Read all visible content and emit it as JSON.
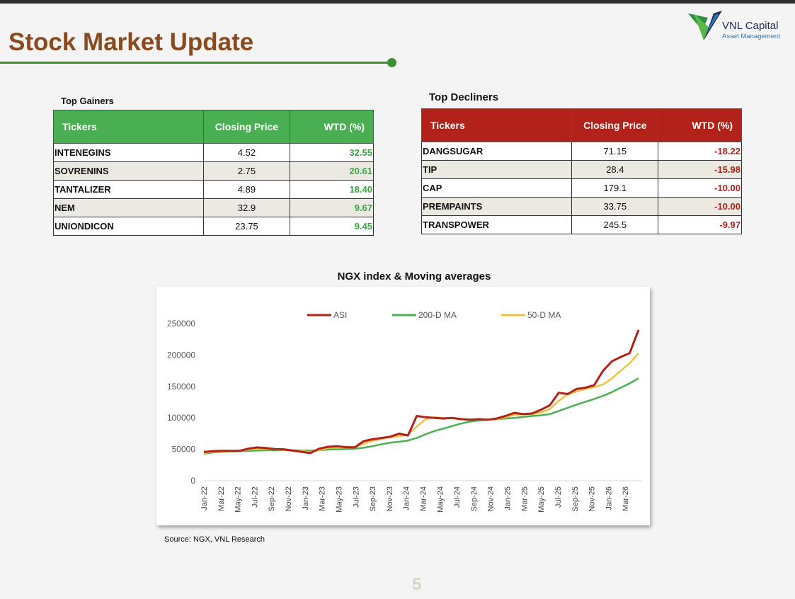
{
  "header": {
    "title": "Stock Market Update"
  },
  "logo": {
    "name": "VNL Capital",
    "tagline": "Asset Management"
  },
  "gainers": {
    "caption": "Top Gainers",
    "columns": [
      "Tickers",
      "Closing Price",
      "WTD (%)"
    ],
    "rows": [
      {
        "ticker": "INTENEGINS",
        "price": "4.52",
        "wtd": "32.55"
      },
      {
        "ticker": "SOVRENINS",
        "price": "2.75",
        "wtd": "20.61"
      },
      {
        "ticker": "TANTALIZER",
        "price": "4.89",
        "wtd": "18.40"
      },
      {
        "ticker": "NEM",
        "price": "32.9",
        "wtd": "9.67"
      },
      {
        "ticker": "UNIONDICON",
        "price": "23.75",
        "wtd": "9.45"
      }
    ],
    "header_color": "#4aae52"
  },
  "decliners": {
    "caption": "Top Decliners",
    "columns": [
      "Tickers",
      "Closing Price",
      "WTD (%)"
    ],
    "rows": [
      {
        "ticker": "DANGSUGAR",
        "price": "71.15",
        "wtd": "-18.22"
      },
      {
        "ticker": "TIP",
        "price": "28.4",
        "wtd": "-15.98"
      },
      {
        "ticker": "CAP",
        "price": "179.1",
        "wtd": "-10.00"
      },
      {
        "ticker": "PREMPAINTS",
        "price": "33.75",
        "wtd": "-10.00"
      },
      {
        "ticker": "TRANSPOWER",
        "price": "245.5",
        "wtd": "-9.97"
      }
    ],
    "header_color": "#b3211b"
  },
  "chart_data": {
    "type": "line",
    "title": "NGX index & Moving averages",
    "ylim": [
      0,
      250000
    ],
    "yticks": [
      0,
      50000,
      100000,
      150000,
      200000,
      250000
    ],
    "x_tick_labels": [
      "Jan-22",
      "Mar-22",
      "May-22",
      "Jul-22",
      "Sep-22",
      "Nov-22",
      "Jan-23",
      "Mar-23",
      "May-23",
      "Jul-23",
      "Sep-23",
      "Nov-23",
      "Jan-24",
      "Mar-24",
      "May-24",
      "Jul-24",
      "Sep-24",
      "Nov-24",
      "Jan-25",
      "Mar-25",
      "May-25",
      "Jul-25",
      "Sep-25",
      "Nov-25",
      "Jan-26",
      "Mar-26"
    ],
    "legend_position": "top",
    "series": [
      {
        "name": "ASI",
        "color": "#b3211b",
        "values": [
          46000,
          47000,
          47500,
          47500,
          47500,
          51000,
          53000,
          52000,
          50500,
          50000,
          48000,
          46000,
          44000,
          51000,
          54000,
          55000,
          53500,
          53000,
          63000,
          66000,
          68000,
          70000,
          75000,
          72000,
          103000,
          101000,
          100000,
          99000,
          100000,
          98000,
          97000,
          98000,
          97000,
          99000,
          103000,
          108000,
          106000,
          107000,
          113000,
          120000,
          140000,
          138000,
          146000,
          148000,
          152000,
          175000,
          190000,
          197000,
          203000,
          240000
        ]
      },
      {
        "name": "200-D MA",
        "color": "#4caf50",
        "values": [
          43000,
          45000,
          46000,
          46500,
          47000,
          47500,
          48000,
          48500,
          48500,
          48500,
          48500,
          48200,
          48000,
          48500,
          49500,
          50000,
          50500,
          51000,
          52500,
          55000,
          58000,
          60500,
          62000,
          64000,
          68000,
          74000,
          79000,
          83000,
          87000,
          91000,
          94000,
          96000,
          97000,
          98000,
          99000,
          100000,
          101500,
          103000,
          104000,
          106000,
          111000,
          116000,
          121000,
          125500,
          130000,
          135000,
          141000,
          148000,
          155000,
          163000
        ]
      },
      {
        "name": "50-D MA",
        "color": "#f0c040",
        "values": [
          44000,
          46000,
          46500,
          47000,
          48000,
          49500,
          50500,
          51000,
          50000,
          49000,
          48000,
          47000,
          46000,
          48500,
          52000,
          53500,
          53500,
          53000,
          59000,
          63500,
          66500,
          69000,
          71000,
          73000,
          86000,
          98000,
          101000,
          100000,
          99000,
          98500,
          97500,
          97500,
          97500,
          98000,
          101000,
          105000,
          105500,
          106000,
          108500,
          114000,
          127000,
          137000,
          142000,
          146000,
          149000,
          153000,
          163000,
          175000,
          187000,
          203000
        ]
      }
    ]
  },
  "source": "Source: NGX, VNL Research",
  "page_number": "5"
}
